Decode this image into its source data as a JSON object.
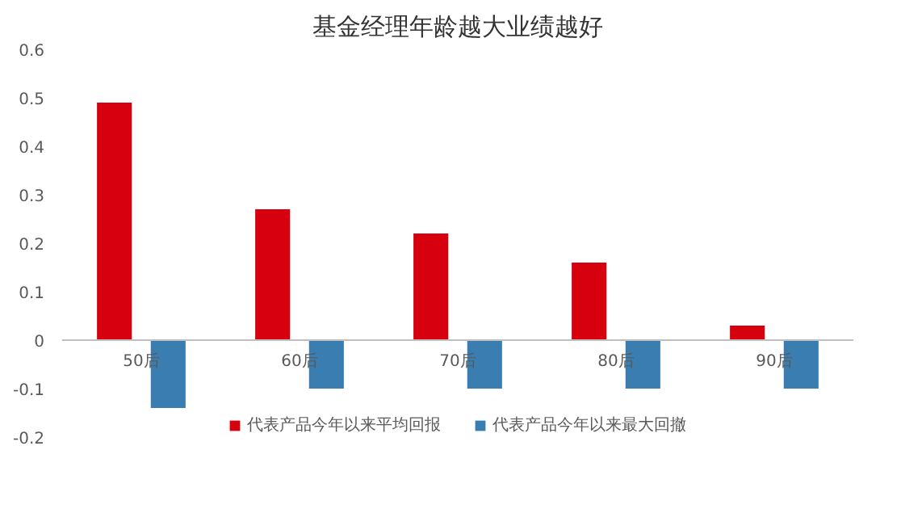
{
  "chart_data": {
    "type": "bar",
    "title": "基金经理年龄越大业绩越好",
    "categories": [
      "50后",
      "60后",
      "70后",
      "80后",
      "90后"
    ],
    "series": [
      {
        "name": "代表产品今年以来平均回报",
        "color": "#d7000f",
        "values": [
          0.49,
          0.27,
          0.22,
          0.16,
          0.03
        ]
      },
      {
        "name": "代表产品今年以来最大回撤",
        "color": "#3a7db1",
        "values": [
          -0.14,
          -0.1,
          -0.1,
          -0.1,
          -0.1
        ]
      }
    ],
    "ylim": [
      -0.2,
      0.6
    ],
    "yticks": [
      -0.2,
      -0.1,
      0,
      0.1,
      0.2,
      0.3,
      0.4,
      0.5,
      0.6
    ],
    "grid": false,
    "legend": "bottom"
  }
}
